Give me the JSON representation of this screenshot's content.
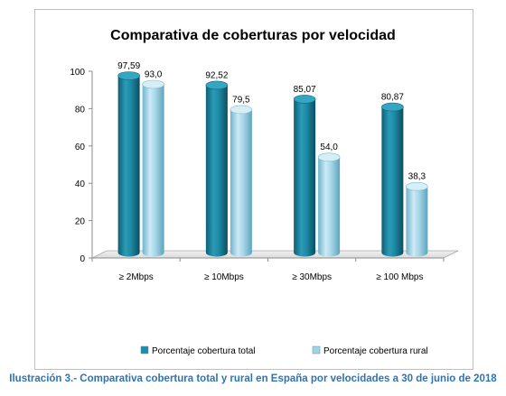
{
  "chart_data": {
    "type": "bar",
    "title": "Comparativa de coberturas por velocidad",
    "categories": [
      "≥ 2Mbps",
      "≥ 10Mbps",
      "≥ 30Mbps",
      "≥ 100 Mbps"
    ],
    "series": [
      {
        "name": "Porcentaje cobertura total",
        "values": [
          97.59,
          92.52,
          85.07,
          80.87
        ],
        "labels": [
          "97,59",
          "92,52",
          "85,07",
          "80,87"
        ],
        "color": "#1f8ca8"
      },
      {
        "name": "Porcentaje cobertura rural",
        "values": [
          93.0,
          79.5,
          54.0,
          38.3
        ],
        "labels": [
          "93,0",
          "79,5",
          "54,0",
          "38,3"
        ],
        "color": "#9fd3e6"
      }
    ],
    "yticks": [
      0,
      20,
      40,
      60,
      80,
      100
    ],
    "ylim": [
      0,
      100
    ],
    "grid": false,
    "legend": "bottom",
    "style": "3d-cylinder"
  },
  "caption": "Ilustración 3.- Comparativa cobertura total y rural en España por velocidades a 30 de junio de 2018"
}
